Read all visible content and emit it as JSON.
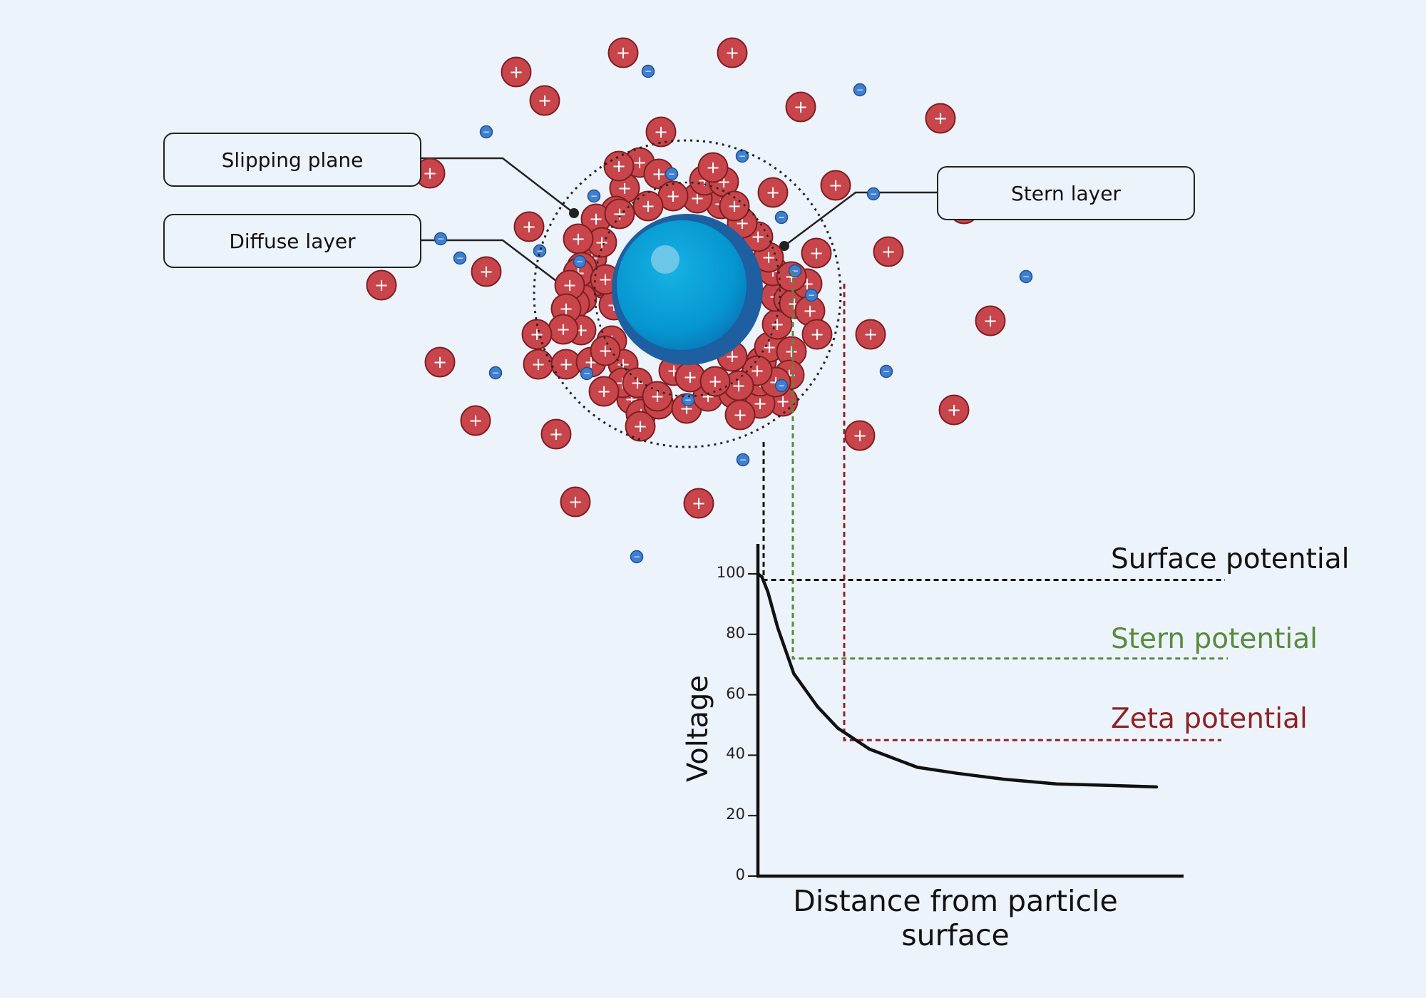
{
  "labels": {
    "slipping_plane": "Slipping plane",
    "diffuse_layer": "Diffuse layer",
    "stern_layer": "Stern layer"
  },
  "levels": {
    "surface": "Surface potential",
    "stern": "Stern potential",
    "zeta": "Zeta potential"
  },
  "colors": {
    "background": "#edf3fb",
    "particle": "#05a3d6",
    "particle_edge": "#1d5fa0",
    "positive_ion": "#c8464b",
    "negative_ion": "#3f7fcf",
    "surface_line": "#111111",
    "stern_line": "#5a8a3c",
    "zeta_line": "#8e2424"
  },
  "ions": {
    "positive_symbol": "+",
    "negative_symbol": "−"
  },
  "chart_data": {
    "type": "line",
    "ylabel": "Voltage",
    "xlabel": "Distance from particle surface",
    "yticks": [
      0,
      20,
      40,
      60,
      80,
      100
    ],
    "ylim": [
      0,
      108
    ],
    "x": [
      0,
      0.01,
      0.025,
      0.05,
      0.09,
      0.15,
      0.2,
      0.28,
      0.4,
      0.5,
      0.62,
      0.75,
      0.88,
      1.0
    ],
    "y": [
      100,
      99,
      94,
      82,
      67,
      56,
      49,
      42,
      36,
      34,
      32,
      30.5,
      30,
      29.5
    ],
    "levels": {
      "surface": 98,
      "stern": 72,
      "zeta": 45
    },
    "grid": false
  }
}
